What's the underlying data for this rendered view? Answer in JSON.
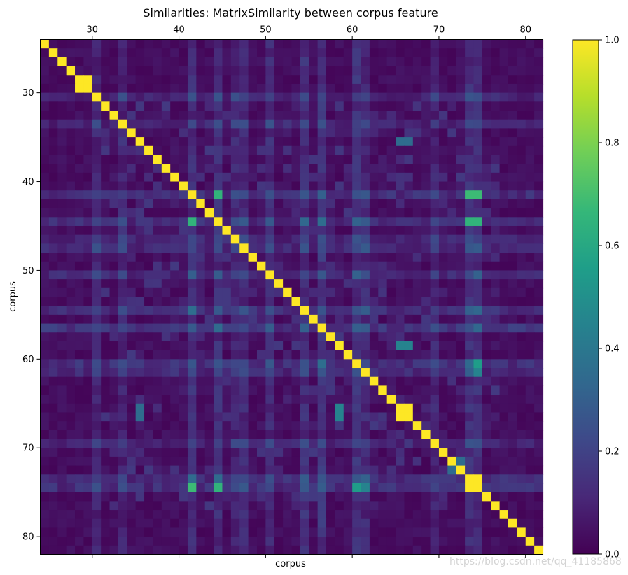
{
  "chart_data": {
    "type": "heatmap",
    "title": "Similarities: MatrixSimilarity between corpus feature",
    "xlabel": "corpus",
    "ylabel": "corpus",
    "x_range": [
      24,
      82
    ],
    "y_range": [
      24,
      82
    ],
    "x_ticks": [
      30,
      40,
      50,
      60,
      70,
      80
    ],
    "y_ticks": [
      30,
      40,
      50,
      60,
      70,
      80
    ],
    "colorbar": {
      "min": 0.0,
      "max": 1.0,
      "ticks": [
        "0.0",
        "0.2",
        "0.4",
        "0.6",
        "0.8",
        "1.0"
      ]
    },
    "colormap": [
      "#440154",
      "#482878",
      "#3e4989",
      "#31688e",
      "#26828e",
      "#1f9e89",
      "#35b779",
      "#6ece58",
      "#b5de2b",
      "#fde725"
    ],
    "diagonal_value": 1.0,
    "block_duplicates": [
      [
        28,
        29
      ],
      [
        65,
        66
      ],
      [
        73,
        74
      ]
    ],
    "high_rows": [
      {
        "index": 30,
        "value": 0.22
      },
      {
        "index": 33,
        "value": 0.22
      },
      {
        "index": 41,
        "value": 0.3
      },
      {
        "index": 44,
        "value": 0.3
      },
      {
        "index": 46,
        "value": 0.22
      },
      {
        "index": 47,
        "value": 0.26
      },
      {
        "index": 50,
        "value": 0.26
      },
      {
        "index": 54,
        "value": 0.3
      },
      {
        "index": 56,
        "value": 0.35
      },
      {
        "index": 60,
        "value": 0.32
      },
      {
        "index": 61,
        "value": 0.26
      },
      {
        "index": 69,
        "value": 0.22
      },
      {
        "index": 73,
        "value": 0.3
      },
      {
        "index": 74,
        "value": 0.3
      }
    ],
    "notable_cells": [
      {
        "row": 41,
        "col": 44,
        "value": 0.65
      },
      {
        "row": 41,
        "col": 73,
        "value": 0.68
      },
      {
        "row": 41,
        "col": 74,
        "value": 0.68
      },
      {
        "row": 44,
        "col": 41,
        "value": 0.65
      },
      {
        "row": 44,
        "col": 73,
        "value": 0.65
      },
      {
        "row": 44,
        "col": 74,
        "value": 0.65
      },
      {
        "row": 74,
        "col": 41,
        "value": 0.68
      },
      {
        "row": 74,
        "col": 44,
        "value": 0.65
      },
      {
        "row": 74,
        "col": 60,
        "value": 0.55
      },
      {
        "row": 74,
        "col": 61,
        "value": 0.45
      },
      {
        "row": 60,
        "col": 74,
        "value": 0.55
      },
      {
        "row": 61,
        "col": 74,
        "value": 0.45
      },
      {
        "row": 58,
        "col": 65,
        "value": 0.45
      },
      {
        "row": 58,
        "col": 66,
        "value": 0.45
      },
      {
        "row": 35,
        "col": 65,
        "value": 0.35
      },
      {
        "row": 35,
        "col": 66,
        "value": 0.35
      },
      {
        "row": 65,
        "col": 58,
        "value": 0.45
      },
      {
        "row": 66,
        "col": 58,
        "value": 0.45
      },
      {
        "row": 65,
        "col": 35,
        "value": 0.35
      },
      {
        "row": 66,
        "col": 35,
        "value": 0.35
      },
      {
        "row": 71,
        "col": 72,
        "value": 0.35
      },
      {
        "row": 72,
        "col": 71,
        "value": 0.35
      }
    ]
  },
  "watermark": "https://blog.csdn.net/qq_41185868"
}
